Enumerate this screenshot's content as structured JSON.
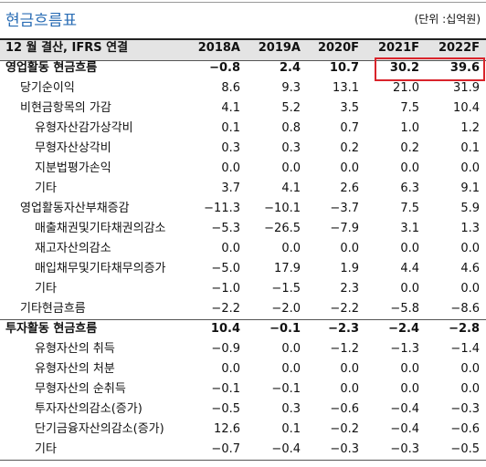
{
  "header": {
    "title": "현금흐름표",
    "unit": "(단위 :십억원)"
  },
  "table": {
    "columns": [
      "12 월 결산, IFRS 연결",
      "2018A",
      "2019A",
      "2020F",
      "2021F",
      "2022F"
    ],
    "rows": [
      [
        "영업활동 현금흐름",
        "−0.8",
        "2.4",
        "10.7",
        "30.2",
        "39.6"
      ],
      [
        "당기순이익",
        "8.6",
        "9.3",
        "13.1",
        "21.0",
        "31.9"
      ],
      [
        "비현금항목의 가감",
        "4.1",
        "5.2",
        "3.5",
        "7.5",
        "10.4"
      ],
      [
        "유형자산감가상각비",
        "0.1",
        "0.8",
        "0.7",
        "1.0",
        "1.2"
      ],
      [
        "무형자산상각비",
        "0.3",
        "0.3",
        "0.2",
        "0.2",
        "0.1"
      ],
      [
        "지분법평가손익",
        "0.0",
        "0.0",
        "0.0",
        "0.0",
        "0.0"
      ],
      [
        "기타",
        "3.7",
        "4.1",
        "2.6",
        "6.3",
        "9.1"
      ],
      [
        "영업활동자산부채증감",
        "−11.3",
        "−10.1",
        "−3.7",
        "7.5",
        "5.9"
      ],
      [
        "매출채권및기타채권의감소",
        "−5.3",
        "−26.5",
        "−7.9",
        "3.1",
        "1.3"
      ],
      [
        "재고자산의감소",
        "0.0",
        "0.0",
        "0.0",
        "0.0",
        "0.0"
      ],
      [
        "매입채무및기타채무의증가",
        "−5.0",
        "17.9",
        "1.9",
        "4.4",
        "4.6"
      ],
      [
        "기타",
        "−1.0",
        "−1.5",
        "2.3",
        "0.0",
        "0.0"
      ],
      [
        "기타현금흐름",
        "−2.2",
        "−2.0",
        "−2.2",
        "−5.8",
        "−8.6"
      ],
      [
        "투자활동 현금흐름",
        "10.4",
        "−0.1",
        "−2.3",
        "−2.4",
        "−2.8"
      ],
      [
        "유형자산의 취득",
        "−0.9",
        "0.0",
        "−1.2",
        "−1.3",
        "−1.4"
      ],
      [
        "유형자산의 처분",
        "0.0",
        "0.0",
        "0.0",
        "0.0",
        "0.0"
      ],
      [
        "무형자산의 순취득",
        "−0.1",
        "−0.1",
        "0.0",
        "0.0",
        "0.0"
      ],
      [
        "투자자산의감소(증가)",
        "−0.5",
        "0.3",
        "−0.6",
        "−0.4",
        "−0.3"
      ],
      [
        "단기금융자산의감소(증가)",
        "12.6",
        "0.1",
        "−0.2",
        "−0.4",
        "−0.6"
      ],
      [
        "기타",
        "−0.7",
        "−0.4",
        "−0.3",
        "−0.3",
        "−0.5"
      ]
    ]
  }
}
